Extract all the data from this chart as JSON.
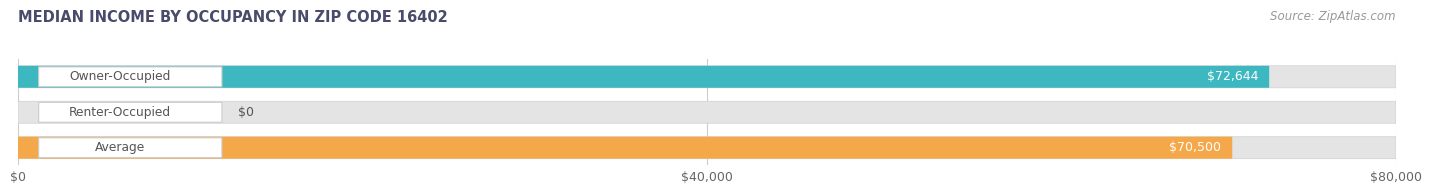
{
  "title": "MEDIAN INCOME BY OCCUPANCY IN ZIP CODE 16402",
  "source": "Source: ZipAtlas.com",
  "categories": [
    "Owner-Occupied",
    "Renter-Occupied",
    "Average"
  ],
  "values": [
    72644,
    0,
    70500
  ],
  "bar_colors": [
    "#3db8c0",
    "#c4a8d8",
    "#f5a84a"
  ],
  "value_labels": [
    "$72,644",
    "$0",
    "$70,500"
  ],
  "xlim": [
    0,
    80000
  ],
  "xticks": [
    0,
    40000,
    80000
  ],
  "xticklabels": [
    "$0",
    "$40,000",
    "$80,000"
  ],
  "bg_color": "#ffffff",
  "bar_bg_color": "#e4e4e4",
  "bar_bg_border": "#d0d0d0",
  "title_color": "#4a4a6a",
  "source_color": "#999999",
  "label_text_color": "#555555",
  "value_in_bar_color": "#ffffff",
  "value_outside_color": "#555555"
}
